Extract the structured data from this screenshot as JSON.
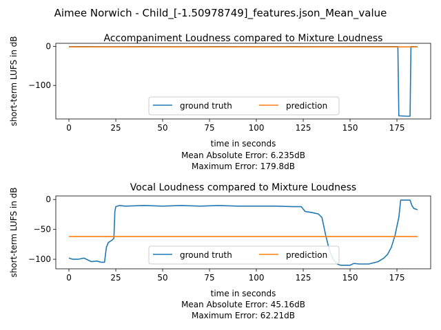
{
  "figure_title": "Aimee Norwich - Child_[-1.50978749]_features.json_Mean_value",
  "colors": {
    "ground_truth": "#1f77b4",
    "prediction": "#ff7f0e"
  },
  "chart_data": [
    {
      "type": "line",
      "title": "Accompaniment Loudness compared to Mixture Loudness",
      "xlabel": "time in seconds",
      "ylabel": "short-term LUFS in dB",
      "xlim": [
        -7,
        193
      ],
      "ylim": [
        -186,
        8
      ],
      "xticks": [
        0,
        25,
        50,
        75,
        100,
        125,
        150,
        175
      ],
      "yticks": [
        0,
        -100
      ],
      "legend": {
        "placement": "lower center",
        "entries": [
          "ground truth",
          "prediction"
        ]
      },
      "stats": [
        "Mean Absolute Error: 6.235dB",
        "Maximum Error: 179.8dB"
      ],
      "series": [
        {
          "name": "ground truth",
          "x": [
            0,
            20,
            40,
            60,
            80,
            100,
            120,
            140,
            160,
            175.5,
            176.0,
            176.5,
            180,
            182,
            182.5,
            183,
            186
          ],
          "y": [
            -0.5,
            -0.7,
            -0.4,
            -0.6,
            -0.5,
            -0.7,
            -0.5,
            -0.6,
            -0.5,
            -0.5,
            -178,
            -178,
            -179,
            -179,
            -0.5,
            -0.5,
            -0.6
          ]
        },
        {
          "name": "prediction",
          "x": [
            0,
            186
          ],
          "y": [
            -1.2,
            -1.2
          ]
        }
      ]
    },
    {
      "type": "line",
      "title": "Vocal Loudness compared to Mixture Loudness",
      "xlabel": "time in seconds",
      "ylabel": "short-term LUFS in dB",
      "xlim": [
        -7,
        193
      ],
      "ylim": [
        -116,
        6
      ],
      "xticks": [
        0,
        25,
        50,
        75,
        100,
        125,
        150,
        175
      ],
      "yticks": [
        0,
        -50,
        -100
      ],
      "legend": {
        "placement": "lower center",
        "entries": [
          "ground truth",
          "prediction"
        ]
      },
      "stats": [
        "Mean Absolute Error: 45.16dB",
        "Maximum Error: 62.21dB"
      ],
      "series": [
        {
          "name": "ground truth",
          "x": [
            0,
            2,
            5,
            8,
            10,
            12,
            15,
            17,
            19,
            20,
            21,
            22,
            23,
            24,
            24.5,
            25,
            27,
            30,
            40,
            50,
            60,
            70,
            80,
            90,
            100,
            110,
            120,
            124,
            126,
            130,
            133,
            135,
            137,
            139,
            141,
            143,
            145,
            150,
            152,
            155,
            160,
            165,
            168,
            170,
            172,
            174,
            175,
            176,
            177,
            180,
            182,
            183,
            184,
            186
          ],
          "y": [
            -98,
            -100,
            -100,
            -98,
            -101,
            -104,
            -103,
            -105,
            -105,
            -80,
            -72,
            -70,
            -68,
            -65,
            -20,
            -12,
            -10,
            -11,
            -10,
            -11,
            -10,
            -11,
            -10,
            -11,
            -11,
            -11,
            -12,
            -12,
            -20,
            -22,
            -24,
            -30,
            -60,
            -85,
            -100,
            -108,
            -110,
            -110,
            -107,
            -108,
            -108,
            -104,
            -98,
            -92,
            -80,
            -60,
            -45,
            -30,
            -1,
            -1,
            -1,
            -10,
            -15,
            -17
          ]
        },
        {
          "name": "prediction",
          "x": [
            0,
            186
          ],
          "y": [
            -62,
            -62
          ]
        }
      ]
    }
  ]
}
